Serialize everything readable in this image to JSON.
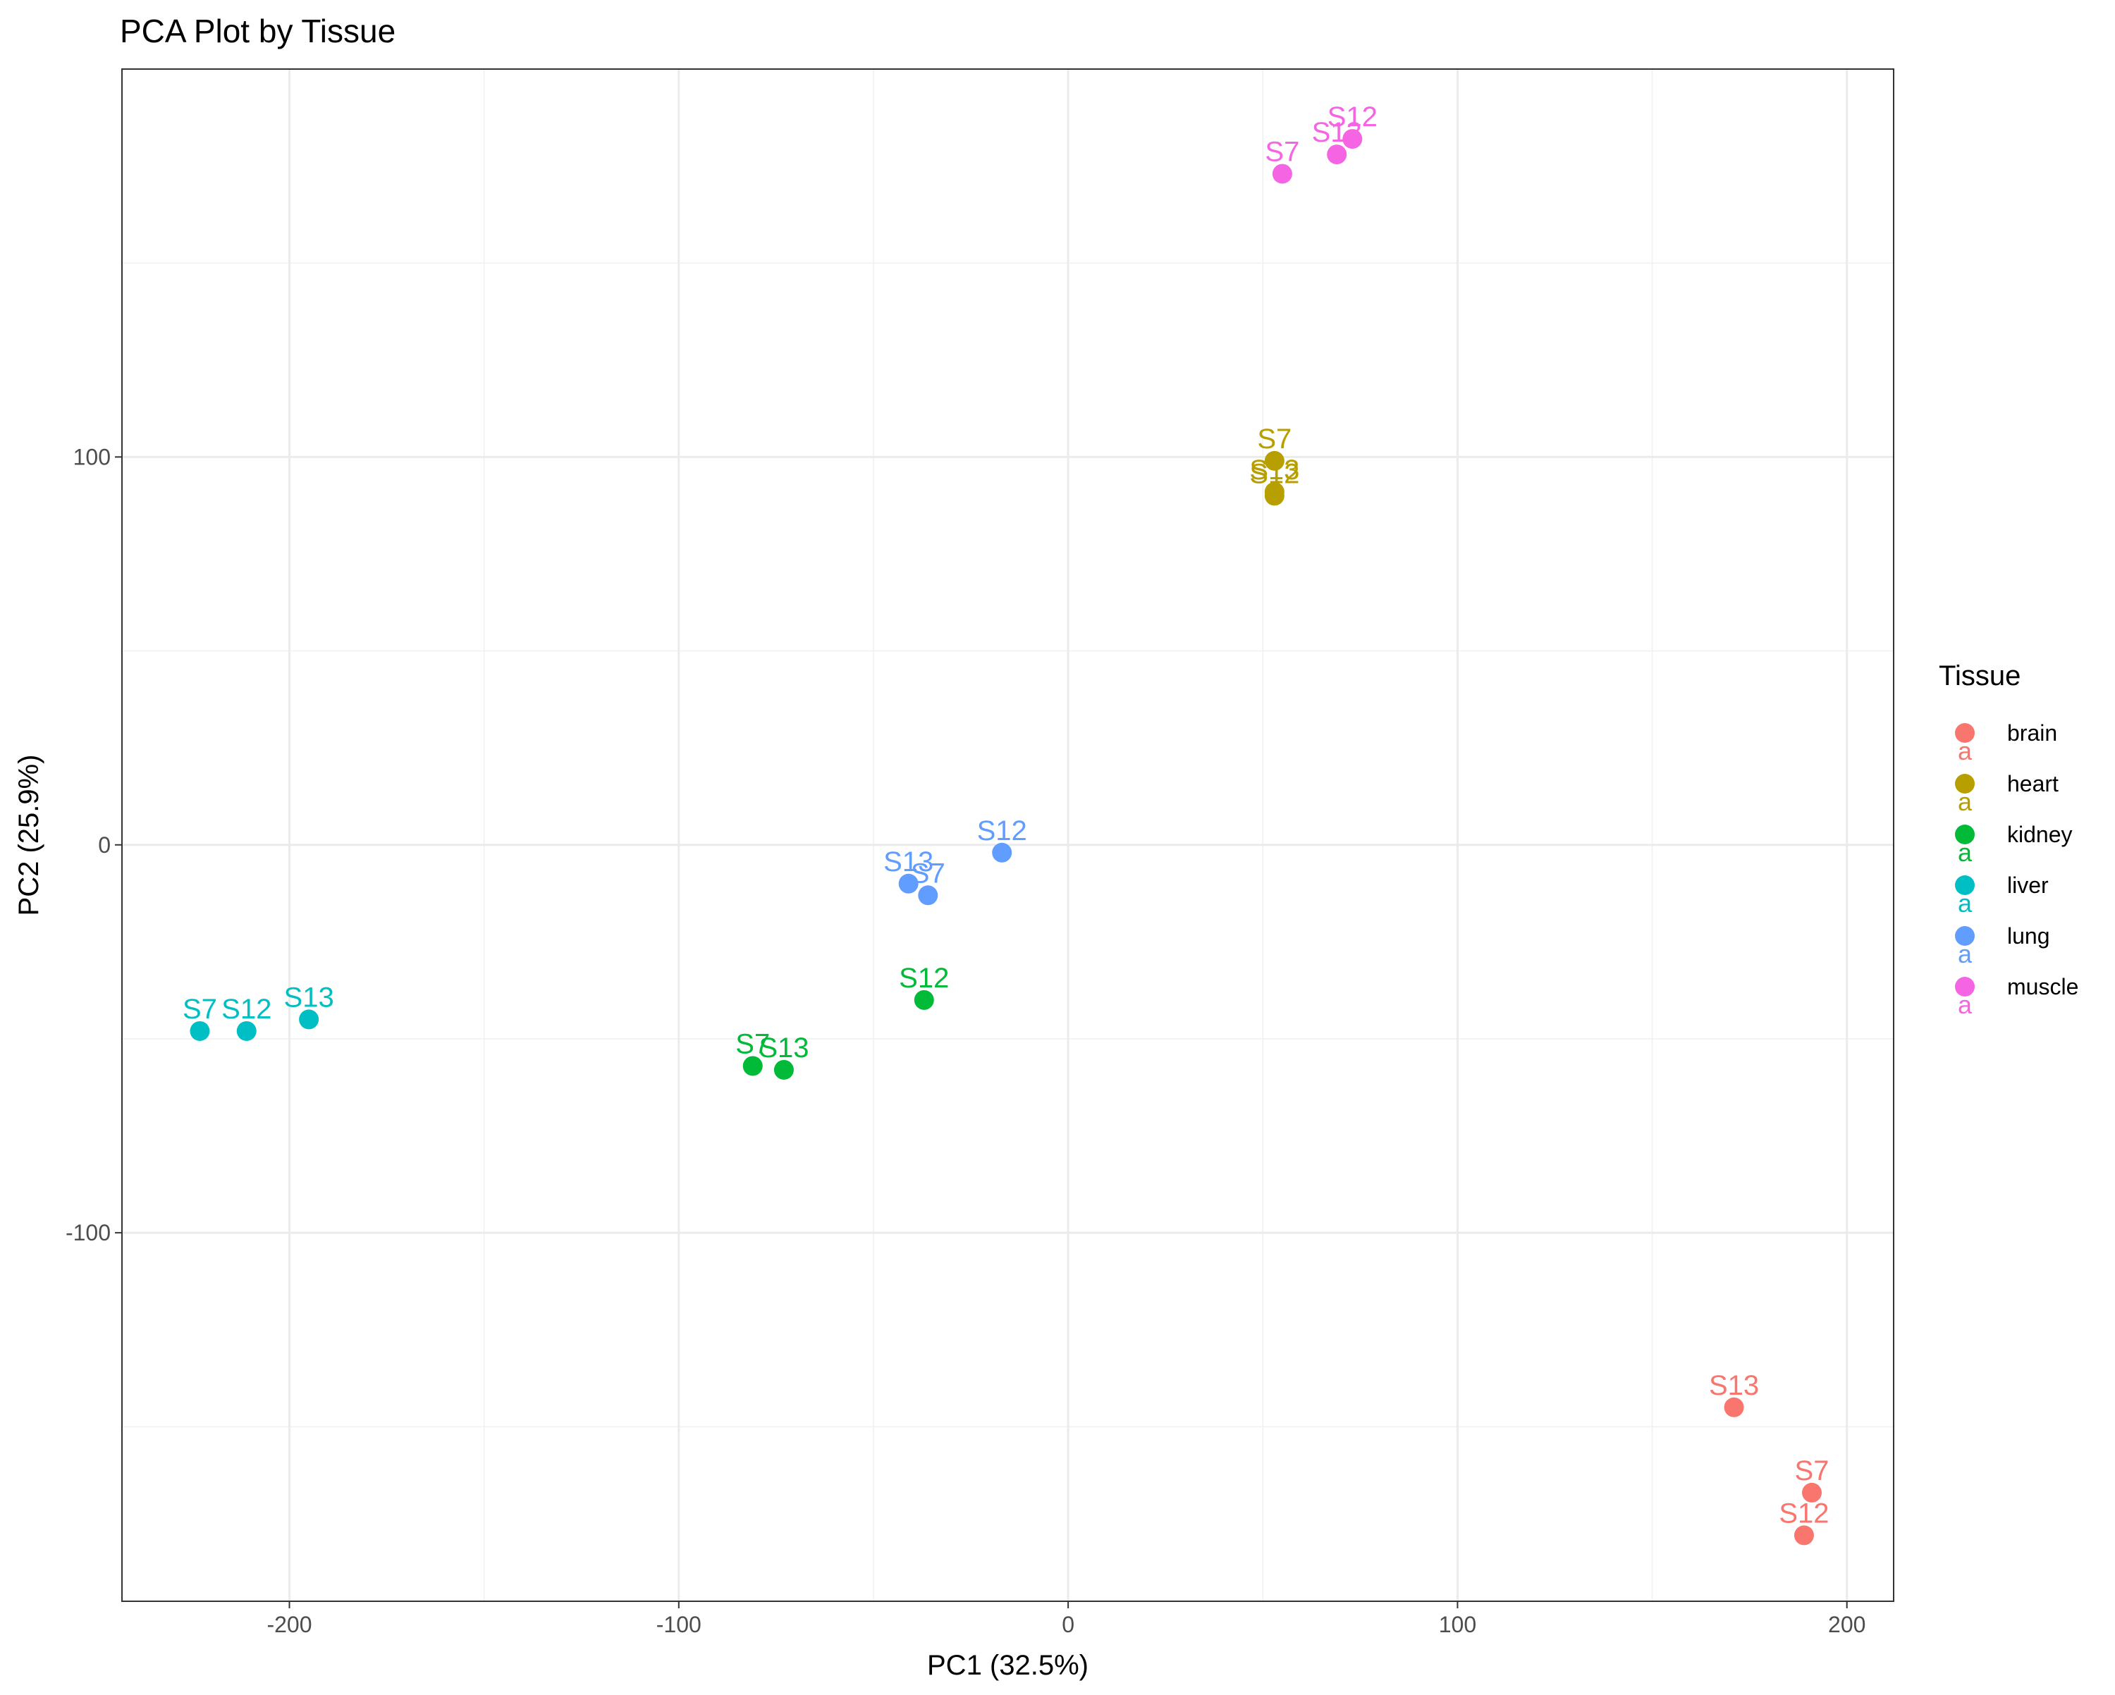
{
  "chart_data": {
    "type": "scatter",
    "title": "PCA Plot by Tissue",
    "xlabel": "PC1 (32.5%)",
    "ylabel": "PC2 (25.9%)",
    "xlim": [
      -243,
      212
    ],
    "ylim": [
      -195,
      200
    ],
    "xticks": [
      -200,
      -100,
      0,
      100,
      200
    ],
    "yticks": [
      -100,
      0,
      100
    ],
    "xtick_labels": [
      "-200",
      "-100",
      "0",
      "100",
      "200"
    ],
    "ytick_labels": [
      "-100",
      "0",
      "100"
    ],
    "grid": true,
    "legend": {
      "title": "Tissue",
      "position": "right",
      "key_glyph": "a"
    },
    "series": [
      {
        "name": "brain",
        "color": "#F8766D",
        "points": [
          {
            "x": 171,
            "y": -145,
            "label": "S13"
          },
          {
            "x": 191,
            "y": -167,
            "label": "S7"
          },
          {
            "x": 189,
            "y": -178,
            "label": "S12"
          }
        ]
      },
      {
        "name": "heart",
        "color": "#B79F00",
        "points": [
          {
            "x": 53,
            "y": 99,
            "label": "S7"
          },
          {
            "x": 53,
            "y": 91,
            "label": "S13"
          },
          {
            "x": 53,
            "y": 90,
            "label": "S12"
          }
        ]
      },
      {
        "name": "kidney",
        "color": "#00BA38",
        "points": [
          {
            "x": -37,
            "y": -40,
            "label": "S12"
          },
          {
            "x": -81,
            "y": -57,
            "label": "S7"
          },
          {
            "x": -73,
            "y": -58,
            "label": "S13"
          }
        ]
      },
      {
        "name": "liver",
        "color": "#00BFC4",
        "points": [
          {
            "x": -223,
            "y": -48,
            "label": "S7"
          },
          {
            "x": -211,
            "y": -48,
            "label": "S12"
          },
          {
            "x": -195,
            "y": -45,
            "label": "S13"
          }
        ]
      },
      {
        "name": "lung",
        "color": "#619CFF",
        "points": [
          {
            "x": -17,
            "y": -2,
            "label": "S12"
          },
          {
            "x": -41,
            "y": -10,
            "label": "S13"
          },
          {
            "x": -36,
            "y": -13,
            "label": "S7"
          }
        ]
      },
      {
        "name": "muscle",
        "color": "#F564E3",
        "points": [
          {
            "x": 73,
            "y": 182,
            "label": "S12"
          },
          {
            "x": 69,
            "y": 178,
            "label": "S13"
          },
          {
            "x": 55,
            "y": 173,
            "label": "S7"
          }
        ]
      }
    ]
  }
}
